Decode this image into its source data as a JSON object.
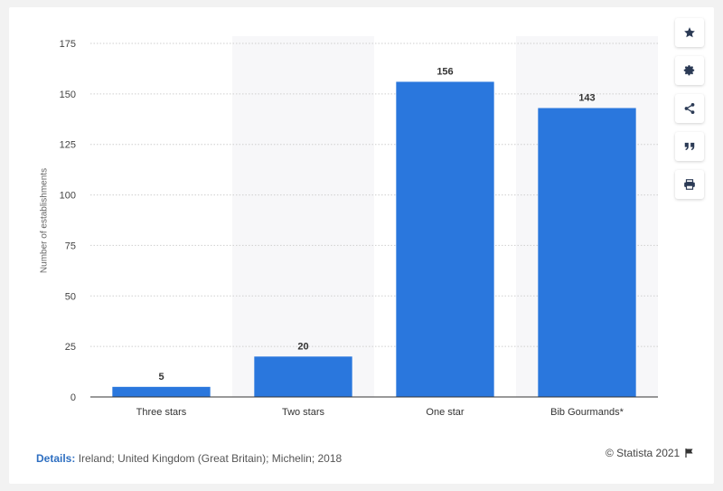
{
  "chart_data": {
    "type": "bar",
    "categories": [
      "Three stars",
      "Two stars",
      "One star",
      "Bib Gourmands*"
    ],
    "values": [
      5,
      20,
      156,
      143
    ],
    "data_labels": [
      "5",
      "20",
      "156",
      "143"
    ],
    "ylabel": "Number of establishments",
    "ylim": [
      0,
      175
    ],
    "yticks": [
      0,
      25,
      50,
      75,
      100,
      125,
      150,
      175
    ],
    "ytick_labels": [
      "0",
      "25",
      "50",
      "75",
      "100",
      "125",
      "150",
      "175"
    ],
    "grid": true,
    "bar_color": "#2a77dd",
    "band_color": "#f7f7f9"
  },
  "sidebar": {
    "buttons": [
      {
        "icon": "star-icon"
      },
      {
        "icon": "gear-icon"
      },
      {
        "icon": "share-icon"
      },
      {
        "icon": "quote-icon"
      },
      {
        "icon": "print-icon"
      }
    ]
  },
  "footer": {
    "details_label": "Details:",
    "details_text": "Ireland; United Kingdom (Great Britain); Michelin; 2018",
    "copyright": "© Statista 2021"
  },
  "colors": {
    "accent": "#2e6fc1",
    "icon": "#2b3a55"
  }
}
